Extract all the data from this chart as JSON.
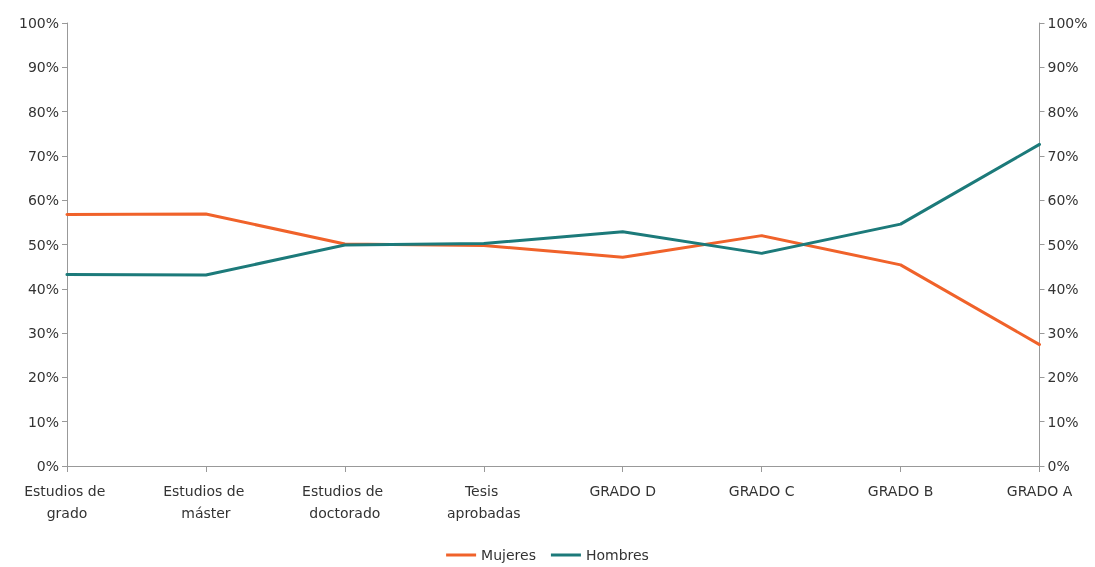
{
  "chart_data": {
    "type": "line",
    "categories": [
      "Estudios de grado",
      "Estudios de máster",
      "Estudios de doctorado",
      "Tesis aprobadas",
      "GRADO D",
      "GRADO C",
      "GRADO B",
      "GRADO A"
    ],
    "series": [
      {
        "name": "Mujeres",
        "color": "#f0622a",
        "values": [
          56.8,
          56.9,
          50.1,
          49.8,
          47.1,
          52.0,
          45.4,
          27.4
        ]
      },
      {
        "name": "Hombres",
        "color": "#1c7a7a",
        "values": [
          43.2,
          43.1,
          49.9,
          50.2,
          52.9,
          48.0,
          54.6,
          72.6
        ]
      }
    ],
    "ylim": [
      0,
      100
    ],
    "yticks": [
      {
        "value": 0,
        "label": "0%"
      },
      {
        "value": 10,
        "label": "10%"
      },
      {
        "value": 20,
        "label": "20%"
      },
      {
        "value": 30,
        "label": "30%"
      },
      {
        "value": 40,
        "label": "40%"
      },
      {
        "value": 50,
        "label": "50%"
      },
      {
        "value": 60,
        "label": "60%"
      },
      {
        "value": 70,
        "label": "70%"
      },
      {
        "value": 80,
        "label": "80%"
      },
      {
        "value": 90,
        "label": "90%"
      },
      {
        "value": 100,
        "label": "100%"
      }
    ],
    "y2lim": [
      0,
      100
    ],
    "y2ticks": [
      {
        "value": 0,
        "label": "0%"
      },
      {
        "value": 10,
        "label": "10%"
      },
      {
        "value": 20,
        "label": "20%"
      },
      {
        "value": 30,
        "label": "30%"
      },
      {
        "value": 40,
        "label": "40%"
      },
      {
        "value": 50,
        "label": "50%"
      },
      {
        "value": 60,
        "label": "60%"
      },
      {
        "value": 70,
        "label": "70%"
      },
      {
        "value": 80,
        "label": "80%"
      },
      {
        "value": 90,
        "label": "90%"
      },
      {
        "value": 100,
        "label": "100%"
      }
    ],
    "grid": false,
    "legend": "bottom",
    "marker": "none",
    "line_style": "solid"
  }
}
